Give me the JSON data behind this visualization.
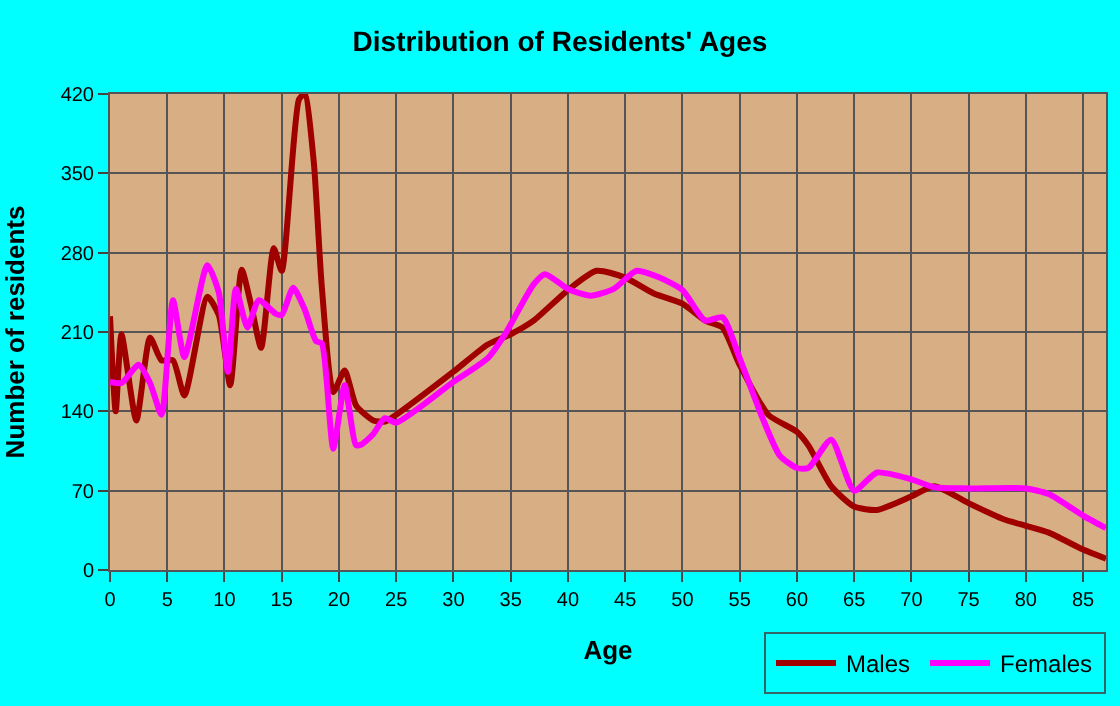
{
  "chart_data": {
    "type": "line",
    "title": "Distribution of Residents' Ages",
    "xlabel": "Age",
    "ylabel": "Number of residents",
    "xlim": [
      0,
      87
    ],
    "xticks": [
      0,
      5,
      10,
      15,
      20,
      25,
      30,
      35,
      40,
      45,
      50,
      55,
      60,
      65,
      70,
      75,
      80,
      85
    ],
    "ylim": [
      0,
      420
    ],
    "yticks": [
      0,
      70,
      140,
      210,
      280,
      350,
      420
    ],
    "grid": true,
    "legend": "bottom right",
    "marker": "none",
    "line_style": "solid",
    "series": [
      {
        "name": "Males",
        "color": "#a00000",
        "x": [
          0,
          0.5,
          1,
          2.3,
          3.5,
          4.5,
          5.5,
          6.5,
          8.5,
          9.5,
          10.5,
          11.5,
          12.3,
          13.2,
          14.3,
          15,
          16.5,
          17,
          17.8,
          18.5,
          19.5,
          20.5,
          21.5,
          23,
          24,
          25,
          30,
          33,
          35,
          37,
          40,
          42.5,
          45,
          47.5,
          50,
          52,
          53.5,
          55,
          57.5,
          60,
          61,
          63,
          65,
          67,
          70,
          72,
          75,
          78,
          80,
          82,
          85,
          87
        ],
        "values": [
          224,
          140,
          208,
          132,
          205,
          185,
          185,
          154,
          241,
          225,
          163,
          265,
          235,
          196,
          284,
          264,
          415,
          420,
          360,
          250,
          157,
          176,
          145,
          132,
          131,
          137,
          175,
          199,
          208,
          220,
          247,
          264,
          258,
          244,
          235,
          220,
          214,
          181,
          137,
          122,
          110,
          74,
          56,
          53,
          65,
          74,
          59,
          45,
          39,
          33,
          18,
          10
        ]
      },
      {
        "name": "Females",
        "color": "#ff00ff",
        "x": [
          0,
          1,
          2.5,
          3.5,
          4.5,
          5.5,
          6.5,
          8.5,
          9.5,
          10.3,
          11,
          12,
          13,
          14.5,
          15,
          16,
          17,
          18,
          18.5,
          19.5,
          20.5,
          21.5,
          22,
          23,
          24,
          25,
          30,
          33,
          34.5,
          37,
          38,
          40,
          42,
          44,
          46,
          48,
          50,
          52,
          53.5,
          55,
          57,
          58.5,
          60,
          61,
          63,
          65,
          67,
          70,
          72,
          75,
          80,
          82,
          85,
          87
        ],
        "values": [
          166,
          165,
          181,
          165,
          137,
          238,
          188,
          269,
          245,
          175,
          248,
          214,
          238,
          226,
          225,
          249,
          230,
          202,
          200,
          107,
          163,
          110,
          111,
          120,
          134,
          130,
          166,
          187,
          208,
          252,
          261,
          248,
          242,
          248,
          264,
          258,
          247,
          220,
          223,
          187,
          134,
          101,
          90,
          90,
          115,
          70,
          86,
          80,
          73,
          72,
          72,
          67,
          48,
          37
        ]
      }
    ]
  }
}
